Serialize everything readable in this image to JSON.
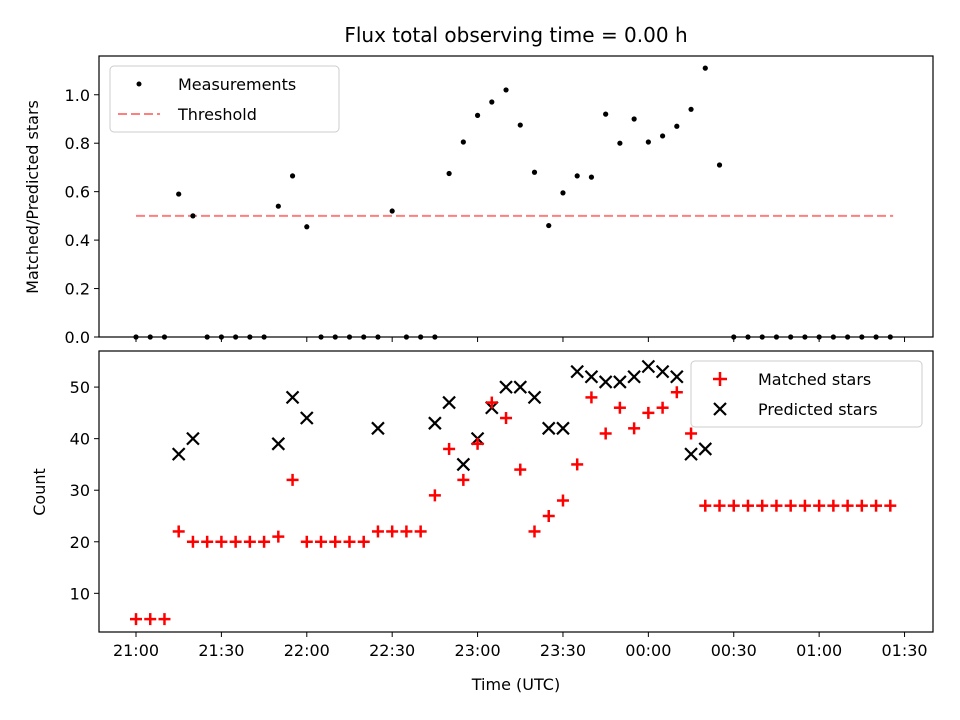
{
  "chart_data": {
    "type": "scatter",
    "title": "Flux total observing time = 0.00 h",
    "xlabel": "Time (UTC)",
    "x_tick_labels": [
      "21:00",
      "21:30",
      "22:00",
      "22:30",
      "23:00",
      "23:30",
      "00:00",
      "00:30",
      "01:00",
      "01:30"
    ],
    "x_tick_minutes": [
      0,
      30,
      60,
      90,
      120,
      150,
      180,
      210,
      240,
      270
    ],
    "xlim_minutes": [
      -13,
      280
    ],
    "top": {
      "ylabel": "Matched/Predicted stars",
      "ylim": [
        0,
        1.16
      ],
      "yticks": [
        0.0,
        0.2,
        0.4,
        0.6,
        0.8,
        1.0
      ],
      "ytick_labels": [
        "0.0",
        "0.2",
        "0.4",
        "0.6",
        "0.8",
        "1.0"
      ],
      "legend_position": "upper-left",
      "threshold": {
        "name": "Threshold",
        "value": 0.5,
        "x_range_minutes": [
          0,
          266
        ],
        "color": "#ff7f7f"
      },
      "measurements": {
        "name": "Measurements",
        "color": "#000000",
        "x_minutes": [
          0,
          5,
          10,
          15,
          20,
          25,
          30,
          35,
          40,
          45,
          50,
          55,
          60,
          65,
          70,
          75,
          80,
          85,
          90,
          95,
          100,
          105,
          110,
          115,
          120,
          125,
          130,
          135,
          140,
          145,
          150,
          155,
          160,
          165,
          170,
          175,
          180,
          185,
          190,
          195,
          200,
          205,
          210,
          215,
          220,
          225,
          230,
          235,
          240,
          245,
          250,
          255,
          260,
          265
        ],
        "values": [
          0,
          0,
          0,
          0.59,
          0.5,
          0,
          0,
          0,
          0,
          0,
          0.54,
          0.665,
          0.455,
          0,
          0,
          0,
          0,
          0,
          0.52,
          0,
          0,
          0,
          0.675,
          0.805,
          0.915,
          0.97,
          1.02,
          0.875,
          0.68,
          0.46,
          0.595,
          0.665,
          0.66,
          0.92,
          0.8,
          0.9,
          0.805,
          0.83,
          0.87,
          0.94,
          1.11,
          0.71,
          0,
          0,
          0,
          0,
          0,
          0,
          0,
          0,
          0,
          0,
          0,
          0
        ]
      }
    },
    "bottom": {
      "ylabel": "Count",
      "ylim": [
        2.5,
        57
      ],
      "yticks": [
        10,
        20,
        30,
        40,
        50
      ],
      "ytick_labels": [
        "10",
        "20",
        "30",
        "40",
        "50"
      ],
      "legend_position": "upper-right",
      "series": [
        {
          "name": "Matched stars",
          "marker": "plus",
          "color": "#ff0000",
          "x_minutes": [
            0,
            5,
            10,
            15,
            20,
            25,
            30,
            35,
            40,
            45,
            50,
            55,
            60,
            65,
            70,
            75,
            80,
            85,
            90,
            95,
            100,
            105,
            110,
            115,
            120,
            125,
            130,
            135,
            140,
            145,
            150,
            155,
            160,
            165,
            170,
            175,
            180,
            185,
            190,
            195,
            200,
            205,
            210,
            215,
            220,
            225,
            230,
            235,
            240,
            245,
            250,
            255,
            260,
            265
          ],
          "values": [
            5,
            5,
            5,
            22,
            20,
            20,
            20,
            20,
            20,
            20,
            21,
            32,
            20,
            20,
            20,
            20,
            20,
            22,
            22,
            22,
            22,
            29,
            38,
            32,
            39,
            47,
            44,
            34,
            22,
            25,
            28,
            35,
            48,
            41,
            46,
            42,
            45,
            46,
            49,
            41,
            27,
            27,
            27,
            27,
            27,
            27,
            27,
            27,
            27,
            27,
            27,
            27,
            27,
            27
          ]
        },
        {
          "name": "Predicted stars",
          "marker": "x",
          "color": "#000000",
          "x_minutes": [
            15,
            20,
            50,
            55,
            60,
            85,
            105,
            110,
            115,
            120,
            125,
            130,
            135,
            140,
            145,
            150,
            155,
            160,
            165,
            170,
            175,
            180,
            185,
            190,
            195,
            200
          ],
          "values": [
            37,
            40,
            39,
            48,
            44,
            42,
            43,
            47,
            35,
            40,
            46,
            50,
            50,
            48,
            42,
            42,
            53,
            52,
            51,
            51,
            52,
            54,
            53,
            52,
            37,
            38
          ]
        }
      ]
    }
  }
}
